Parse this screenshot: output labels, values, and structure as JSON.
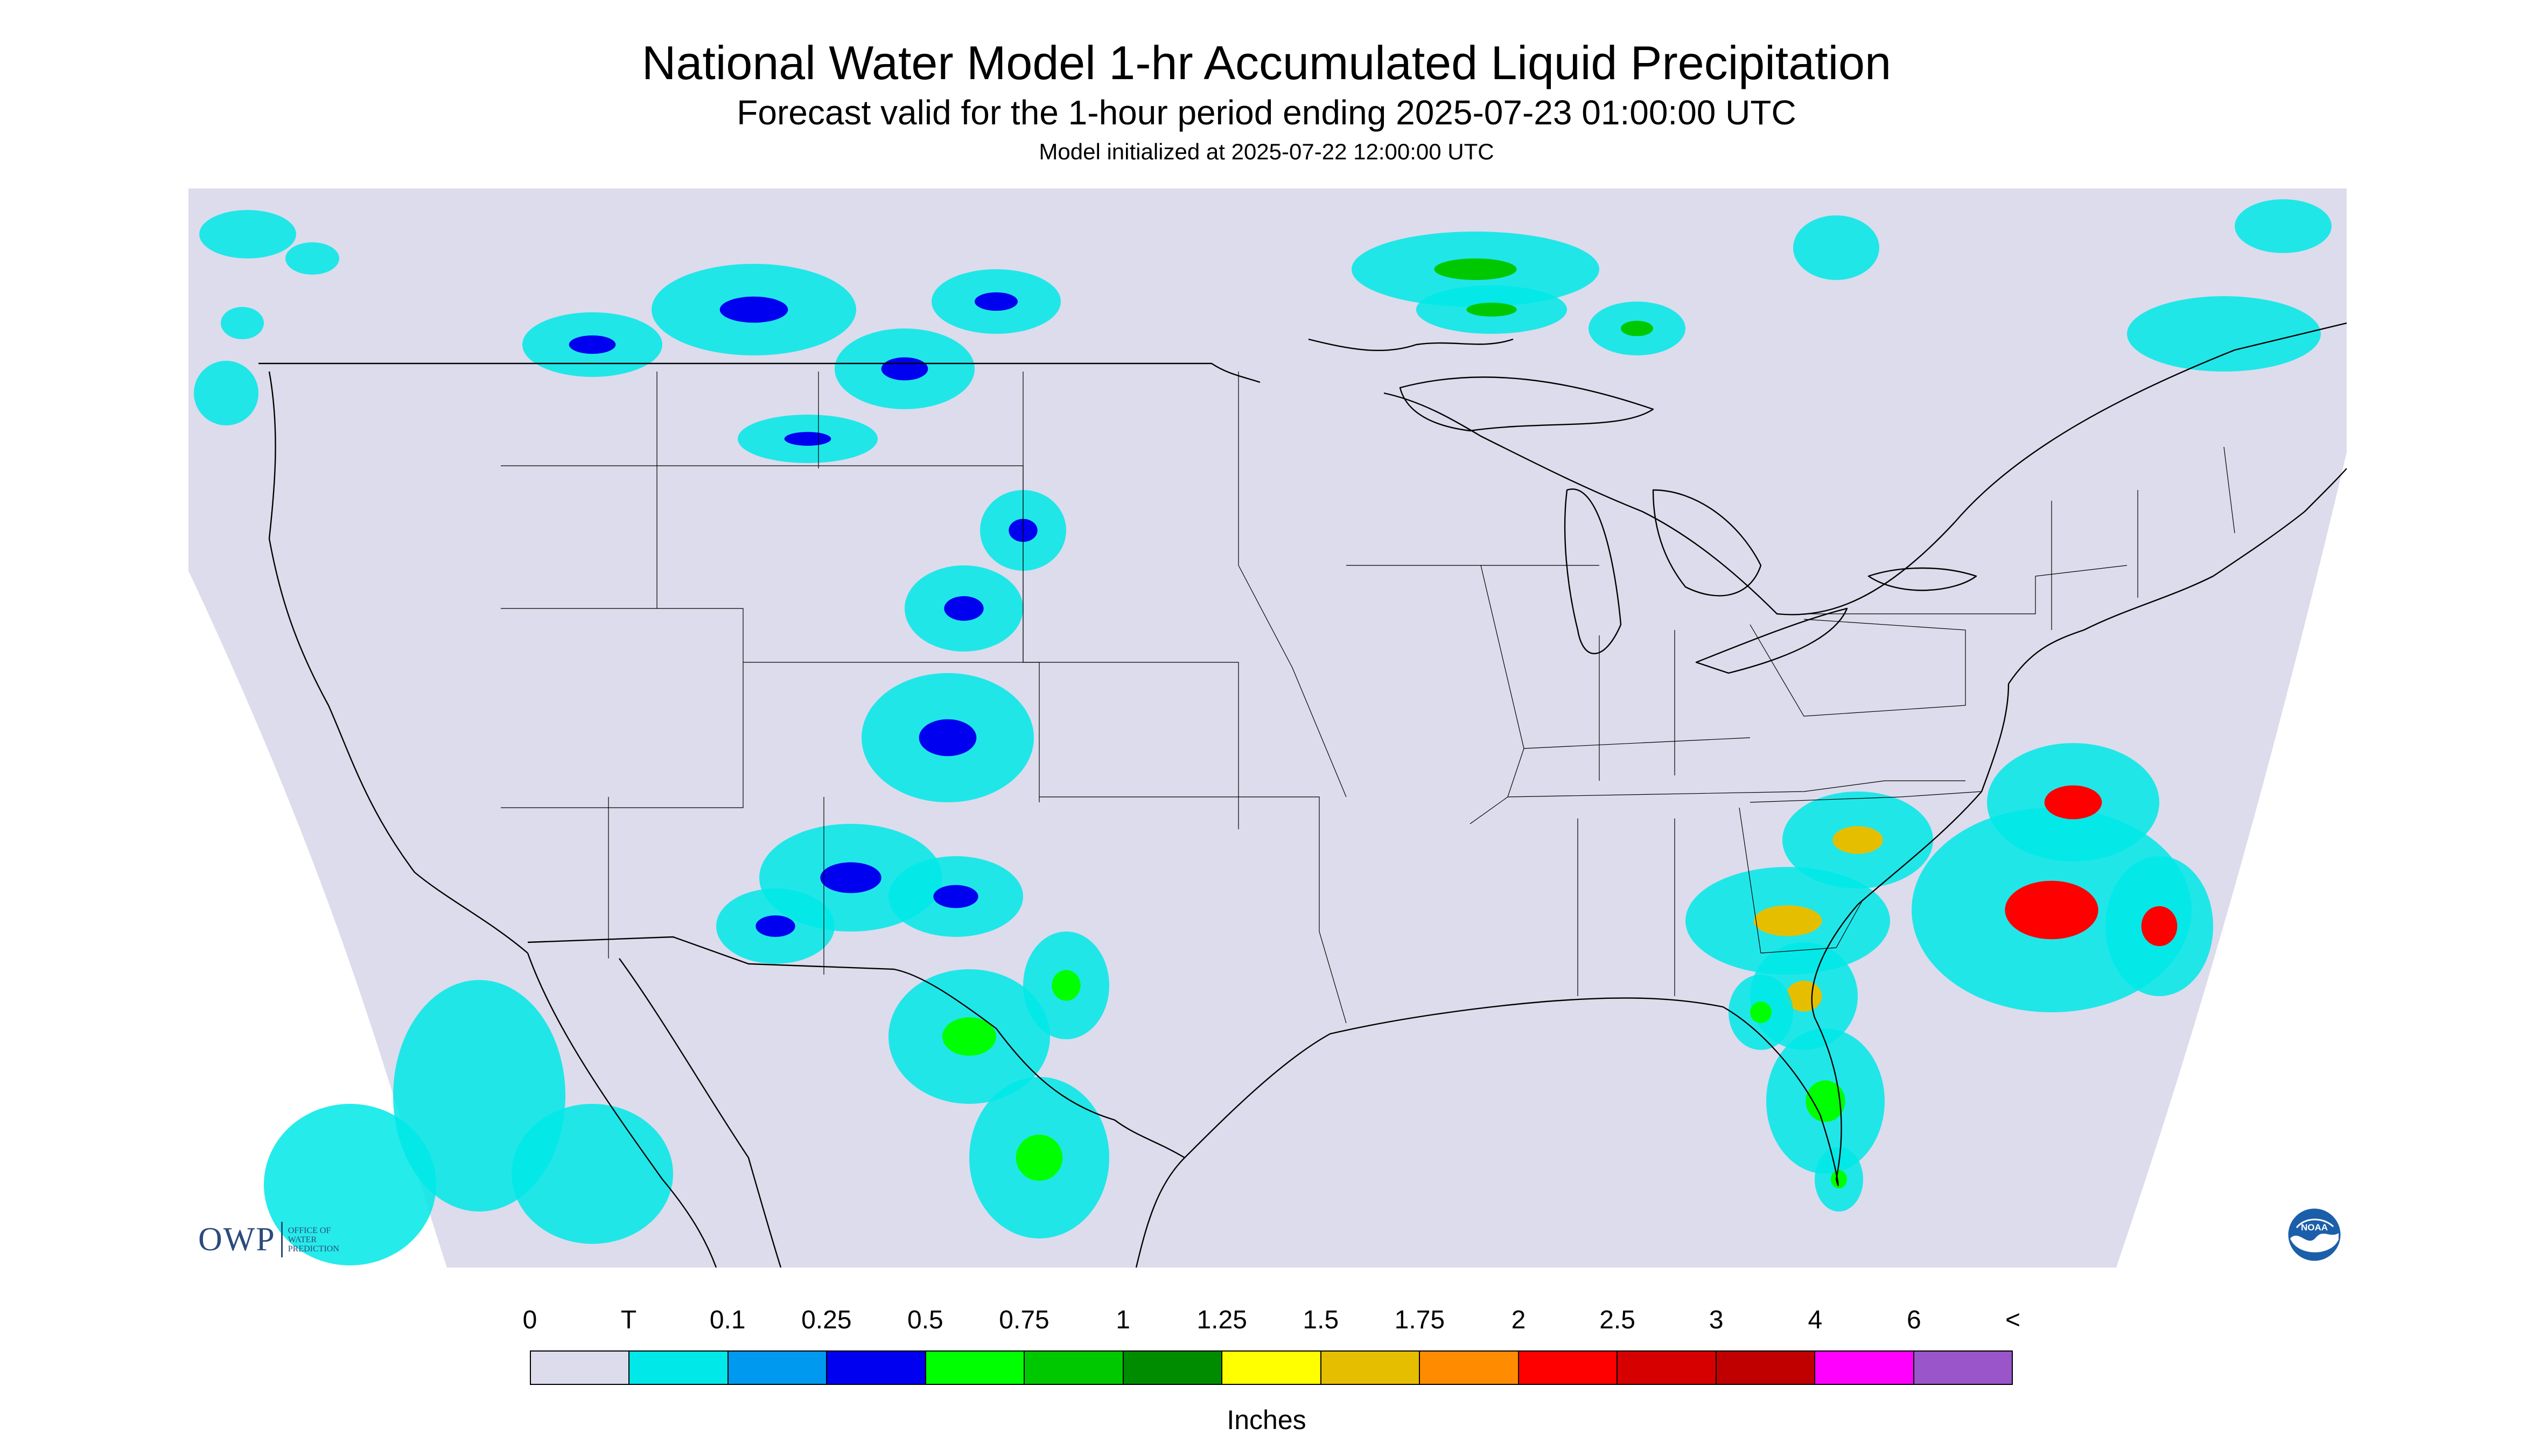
{
  "header": {
    "title": "National Water Model 1-hr Accumulated Liquid Precipitation",
    "subtitle": "Forecast valid for the 1-hour period ending 2025-07-23 01:00:00 UTC",
    "initialized": "Model initialized at 2025-07-22 12:00:00 UTC"
  },
  "map": {
    "background_color": "#dcdcec",
    "coverage": "contiguous United States with southern Canada, northern Mexico and the Gulf of Mexico",
    "boundary_color": "#000000",
    "precip_regions": [
      {
        "area": "southern British Columbia and Alberta",
        "level": "T"
      },
      {
        "area": "Montana and Saskatchewan",
        "level": "0.25"
      },
      {
        "area": "northern Ontario north of Lake Superior",
        "level": "0.75"
      },
      {
        "area": "Colorado Front Range",
        "level": "0.25"
      },
      {
        "area": "New Mexico and Arizona",
        "level": "0.25"
      },
      {
        "area": "western Texas and the Big Bend",
        "level": "0.5"
      },
      {
        "area": "Sierra Madre Occidental, Mexico",
        "level": "T"
      },
      {
        "area": "Georgia and South Carolina coast",
        "level": "1.5"
      },
      {
        "area": "Atlantic offshore east of Georgia",
        "level": "2"
      },
      {
        "area": "Florida peninsula",
        "level": "0.5"
      },
      {
        "area": "Quebec and Maine",
        "level": "T"
      }
    ]
  },
  "logos": {
    "owp": {
      "wordmark": "OWP",
      "line1": "OFFICE OF",
      "line2": "WATER",
      "line3": "PREDICTION",
      "icon": "owp-logo"
    },
    "noaa": {
      "text": "NOAA",
      "icon": "noaa-logo",
      "color": "#1b5faa"
    }
  },
  "legend": {
    "labels": [
      "0",
      "T",
      "0.1",
      "0.25",
      "0.5",
      "0.75",
      "1",
      "1.25",
      "1.5",
      "1.75",
      "2",
      "2.5",
      "3",
      "4",
      "6",
      "<"
    ],
    "colors": [
      "#dcdcec",
      "#00e8e8",
      "#0099f0",
      "#0000f0",
      "#00ff00",
      "#00c800",
      "#008c00",
      "#ffff00",
      "#e6be00",
      "#ff8c00",
      "#ff0000",
      "#d60000",
      "#c00000",
      "#ff00ff",
      "#9955c9"
    ],
    "units": "Inches"
  }
}
